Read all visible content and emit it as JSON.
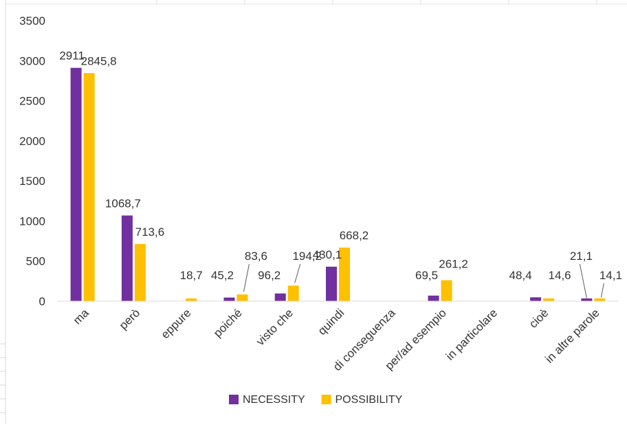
{
  "chart_data": {
    "type": "bar",
    "categories": [
      "ma",
      "però",
      "eppure",
      "poiché",
      "visto che",
      "quindi",
      "di conseguenza",
      "per/ad esempio",
      "in particolare",
      "cioè",
      "in altre parole"
    ],
    "series": [
      {
        "name": "NECESSITY",
        "color": "#7030A0",
        "values": [
          2911,
          1068.7,
          null,
          45.2,
          96.2,
          430.1,
          null,
          69.5,
          null,
          48.4,
          21.1
        ],
        "labels": [
          "2911",
          "1068,7",
          "",
          "45,2",
          "96,2",
          "430,1",
          "",
          "69,5",
          "",
          "48,4",
          "21,1"
        ]
      },
      {
        "name": "POSSIBILITY",
        "color": "#FFC000",
        "values": [
          2845.8,
          713.6,
          18.7,
          83.6,
          194.2,
          668.2,
          null,
          261.2,
          null,
          14.6,
          14.1
        ],
        "labels": [
          "2845,8",
          "713,6",
          "18,7",
          "83,6",
          "194,2",
          "668,2",
          "",
          "261,2",
          "",
          "14,6",
          "14,1"
        ]
      }
    ],
    "yticks": [
      "0",
      "500",
      "1000",
      "1500",
      "2000",
      "2500",
      "3000",
      "3500"
    ],
    "ylim": [
      0,
      3500
    ],
    "grid": false,
    "legend": "bottom"
  }
}
